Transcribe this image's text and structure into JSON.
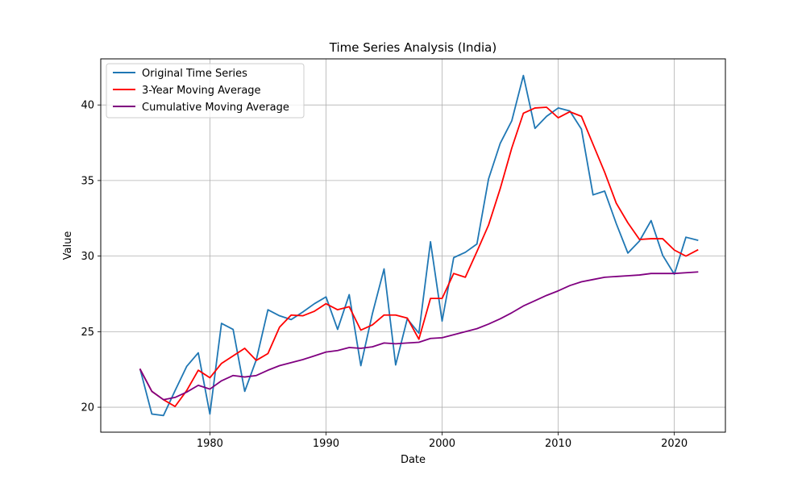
{
  "chart_data": {
    "type": "line",
    "title": "Time Series Analysis (India)",
    "xlabel": "Date",
    "ylabel": "Value",
    "xlim": [
      1970.6,
      2024.4
    ],
    "ylim": [
      18.35,
      43.05
    ],
    "xticks": [
      1980,
      1990,
      2000,
      2010,
      2020
    ],
    "yticks": [
      20,
      25,
      30,
      35,
      40
    ],
    "grid": true,
    "legend_position": "top-left",
    "x": [
      1974,
      1975,
      1976,
      1977,
      1978,
      1979,
      1980,
      1981,
      1982,
      1983,
      1984,
      1985,
      1986,
      1987,
      1988,
      1989,
      1990,
      1991,
      1992,
      1993,
      1994,
      1995,
      1996,
      1997,
      1998,
      1999,
      2000,
      2001,
      2002,
      2003,
      2004,
      2005,
      2006,
      2007,
      2008,
      2009,
      2010,
      2011,
      2012,
      2013,
      2014,
      2015,
      2016,
      2017,
      2018,
      2019,
      2020,
      2021,
      2022
    ],
    "series": [
      {
        "name": "Original Time Series",
        "color": "#1f77b4",
        "values": [
          22.5,
          19.55,
          19.45,
          21.1,
          22.7,
          23.6,
          19.55,
          25.55,
          25.15,
          21.05,
          23.15,
          26.45,
          26.05,
          25.8,
          26.3,
          26.85,
          27.3,
          25.15,
          27.45,
          22.75,
          26.2,
          29.15,
          22.8,
          25.85,
          24.9,
          30.95,
          25.7,
          29.9,
          30.25,
          30.8,
          35.1,
          37.45,
          38.95,
          41.95,
          38.45,
          39.25,
          39.8,
          39.6,
          38.4,
          34.05,
          34.3,
          32.15,
          30.2,
          31.0,
          32.35,
          30.05,
          28.8,
          31.25,
          31.05
        ]
      },
      {
        "name": "3-Year Moving Average",
        "color": "#ff0000",
        "values": [
          22.5,
          21.05,
          20.5,
          20.05,
          21.1,
          22.45,
          21.95,
          22.9,
          23.4,
          23.9,
          23.1,
          23.55,
          25.3,
          26.1,
          26.05,
          26.35,
          26.85,
          26.45,
          26.65,
          25.1,
          25.45,
          26.1,
          26.1,
          25.9,
          24.5,
          27.2,
          27.2,
          28.85,
          28.6,
          30.3,
          32.05,
          34.45,
          37.15,
          39.45,
          39.8,
          39.85,
          39.15,
          39.55,
          39.25,
          37.4,
          35.55,
          33.5,
          32.2,
          31.1,
          31.15,
          31.15,
          30.4,
          30.0,
          30.4
        ]
      },
      {
        "name": "Cumulative Moving Average",
        "color": "#800080",
        "values": [
          22.5,
          21.05,
          20.5,
          20.65,
          21.0,
          21.45,
          21.2,
          21.75,
          22.1,
          22.0,
          22.1,
          22.45,
          22.75,
          22.95,
          23.15,
          23.4,
          23.65,
          23.75,
          23.95,
          23.9,
          24.0,
          24.25,
          24.2,
          24.25,
          24.3,
          24.55,
          24.6,
          24.8,
          25.0,
          25.2,
          25.5,
          25.85,
          26.25,
          26.7,
          27.05,
          27.4,
          27.7,
          28.05,
          28.3,
          28.45,
          28.6,
          28.65,
          28.7,
          28.75,
          28.85,
          28.85,
          28.85,
          28.9,
          28.95
        ]
      }
    ]
  }
}
